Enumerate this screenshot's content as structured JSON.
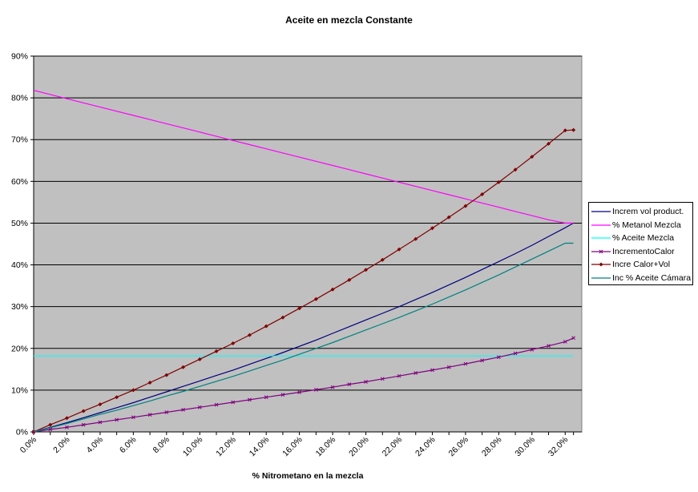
{
  "chart_data": {
    "type": "line",
    "title": "Aceite en mezcla Constante",
    "xlabel": "% Nitrometano en la mezcla",
    "ylabel": "",
    "xlim": [
      0,
      33
    ],
    "ylim": [
      0,
      90
    ],
    "x_ticks": [
      "0.0%",
      "2.0%",
      "4.0%",
      "6.0%",
      "8.0%",
      "10.0%",
      "12.0%",
      "14.0%",
      "16.0%",
      "18.0%",
      "20.0%",
      "22.0%",
      "24.0%",
      "26.0%",
      "28.0%",
      "30.0%",
      "32.0%"
    ],
    "y_ticks": [
      "0%",
      "10%",
      "20%",
      "30%",
      "40%",
      "50%",
      "60%",
      "70%",
      "80%",
      "90%"
    ],
    "grid": true,
    "legend_position": "right",
    "plot_background": "#c0c0c0",
    "x": [
      0,
      1,
      2,
      3,
      4,
      5,
      6,
      7,
      8,
      9,
      10,
      11,
      12,
      13,
      14,
      15,
      16,
      17,
      18,
      19,
      20,
      21,
      22,
      23,
      24,
      25,
      26,
      27,
      28,
      29,
      30,
      31,
      32,
      32.5
    ],
    "series": [
      {
        "name": "Increm vol product.",
        "color": "#000080",
        "marker": "none",
        "values": [
          0,
          1.1,
          2.2,
          3.4,
          4.6,
          5.8,
          7.0,
          8.3,
          9.6,
          10.9,
          12.2,
          13.5,
          14.8,
          16.2,
          17.6,
          19.0,
          20.5,
          22.0,
          23.6,
          25.2,
          26.8,
          28.4,
          30.0,
          31.7,
          33.4,
          35.2,
          37.0,
          38.9,
          40.8,
          42.7,
          44.7,
          46.8,
          48.9,
          50.0
        ]
      },
      {
        "name": "% Metanol Mezcla",
        "color": "#ff00ff",
        "marker": "none",
        "values": [
          81.8,
          80.8,
          79.8,
          78.8,
          77.8,
          76.8,
          75.8,
          74.8,
          73.8,
          72.8,
          71.8,
          70.8,
          69.8,
          68.8,
          67.8,
          66.8,
          65.8,
          64.8,
          63.8,
          62.8,
          61.8,
          60.8,
          59.8,
          58.8,
          57.8,
          56.8,
          55.8,
          54.8,
          53.8,
          52.8,
          51.8,
          50.8,
          50.0,
          50.0
        ]
      },
      {
        "name": "% Aceite Mezcla",
        "color": "#00ffff",
        "marker": "none",
        "values": [
          18.2,
          18.2,
          18.2,
          18.2,
          18.2,
          18.2,
          18.2,
          18.2,
          18.2,
          18.2,
          18.2,
          18.2,
          18.2,
          18.2,
          18.2,
          18.2,
          18.2,
          18.2,
          18.2,
          18.2,
          18.2,
          18.2,
          18.2,
          18.2,
          18.2,
          18.2,
          18.2,
          18.2,
          18.2,
          18.2,
          18.2,
          18.2,
          18.2,
          18.2
        ]
      },
      {
        "name": "IncrementoCalor",
        "color": "#800080",
        "marker": "x",
        "values": [
          0,
          0.6,
          1.1,
          1.7,
          2.3,
          2.9,
          3.5,
          4.1,
          4.7,
          5.3,
          5.9,
          6.5,
          7.1,
          7.7,
          8.3,
          8.9,
          9.5,
          10.1,
          10.7,
          11.4,
          12.0,
          12.7,
          13.4,
          14.1,
          14.8,
          15.5,
          16.3,
          17.1,
          17.9,
          18.8,
          19.7,
          20.6,
          21.6,
          22.5
        ]
      },
      {
        "name": "Incre Calor+Vol",
        "color": "#800000",
        "marker": "diamond",
        "values": [
          0,
          1.7,
          3.3,
          5.0,
          6.6,
          8.3,
          10.0,
          11.8,
          13.6,
          15.5,
          17.4,
          19.3,
          21.2,
          23.2,
          25.3,
          27.4,
          29.6,
          31.8,
          34.1,
          36.4,
          38.8,
          41.2,
          43.7,
          46.2,
          48.8,
          51.4,
          54.1,
          56.9,
          59.8,
          62.8,
          65.9,
          69.0,
          72.2,
          72.3
        ]
      },
      {
        "name": "Inc % Aceite Cámara",
        "color": "#008080",
        "marker": "none",
        "values": [
          0,
          1.0,
          2.0,
          3.1,
          4.2,
          5.2,
          6.3,
          7.4,
          8.6,
          9.7,
          10.9,
          12.1,
          13.3,
          14.6,
          15.9,
          17.2,
          18.6,
          20.0,
          21.4,
          22.9,
          24.4,
          25.9,
          27.4,
          29.0,
          30.6,
          32.3,
          34.0,
          35.8,
          37.6,
          39.5,
          41.4,
          43.3,
          45.2,
          45.2
        ]
      }
    ]
  }
}
